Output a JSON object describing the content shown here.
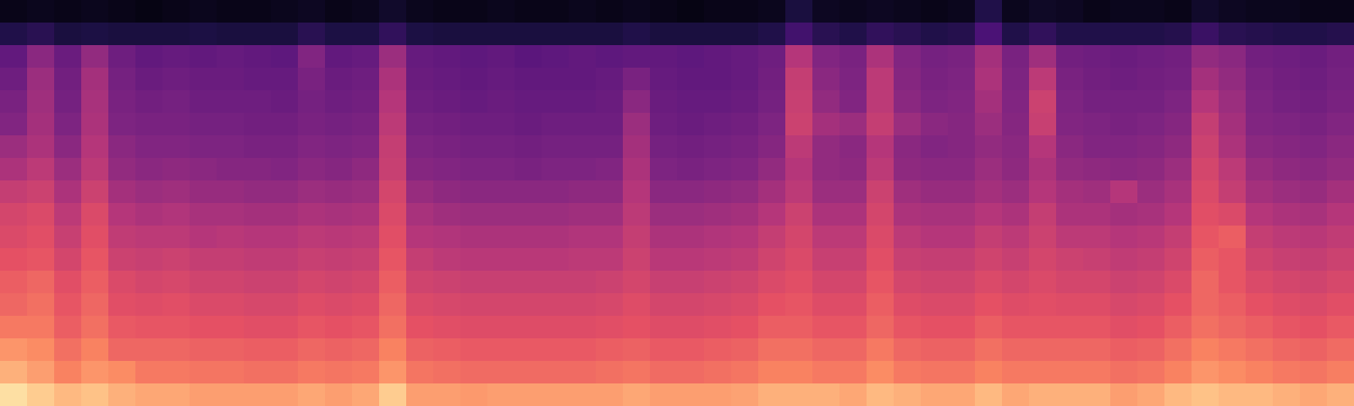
{
  "chart_data": {
    "type": "heatmap",
    "tick_labels": false,
    "zlim": [
      0,
      100
    ],
    "z": [
      [
        4,
        5,
        4,
        5,
        4,
        3,
        4,
        5,
        4,
        4,
        5,
        6,
        4,
        5,
        8,
        5,
        4,
        4,
        5,
        4,
        4,
        5,
        4,
        5,
        4,
        3,
        4,
        4,
        5,
        12,
        6,
        5,
        6,
        5,
        4,
        5,
        14,
        5,
        7,
        6,
        4,
        5,
        5,
        4,
        8,
        6,
        5,
        5,
        4,
        4
      ],
      [
        14,
        16,
        12,
        13,
        12,
        12,
        12,
        13,
        12,
        12,
        12,
        16,
        13,
        13,
        18,
        13,
        12,
        12,
        12,
        12,
        12,
        12,
        12,
        14,
        12,
        12,
        12,
        12,
        14,
        22,
        16,
        14,
        18,
        16,
        14,
        15,
        24,
        14,
        18,
        14,
        14,
        14,
        14,
        15,
        20,
        16,
        15,
        14,
        14,
        15
      ],
      [
        30,
        40,
        32,
        42,
        33,
        30,
        31,
        30,
        31,
        30,
        29,
        38,
        30,
        31,
        44,
        31,
        30,
        29,
        30,
        28,
        29,
        30,
        29,
        30,
        30,
        29,
        30,
        31,
        33,
        50,
        38,
        36,
        48,
        38,
        35,
        36,
        46,
        36,
        45,
        34,
        33,
        32,
        33,
        34,
        42,
        40,
        34,
        33,
        32,
        34
      ],
      [
        33,
        44,
        34,
        46,
        35,
        32,
        33,
        32,
        32,
        31,
        31,
        36,
        32,
        33,
        48,
        32,
        31,
        30,
        31,
        30,
        30,
        30,
        31,
        36,
        31,
        30,
        30,
        31,
        34,
        54,
        40,
        37,
        52,
        39,
        36,
        37,
        48,
        37,
        52,
        36,
        34,
        33,
        34,
        35,
        46,
        42,
        36,
        34,
        33,
        35
      ],
      [
        36,
        45,
        35,
        47,
        36,
        34,
        35,
        33,
        33,
        33,
        32,
        35,
        33,
        34,
        50,
        33,
        32,
        31,
        32,
        31,
        31,
        31,
        32,
        40,
        32,
        31,
        31,
        32,
        35,
        55,
        42,
        38,
        52,
        40,
        37,
        38,
        46,
        38,
        56,
        37,
        35,
        35,
        35,
        37,
        50,
        44,
        37,
        35,
        34,
        36
      ],
      [
        38,
        46,
        37,
        48,
        37,
        36,
        36,
        35,
        35,
        34,
        34,
        36,
        35,
        36,
        52,
        35,
        34,
        33,
        33,
        32,
        33,
        33,
        33,
        44,
        33,
        32,
        33,
        34,
        37,
        56,
        46,
        44,
        54,
        44,
        40,
        39,
        44,
        39,
        55,
        38,
        37,
        36,
        37,
        39,
        54,
        46,
        38,
        37,
        36,
        38
      ],
      [
        44,
        48,
        40,
        50,
        40,
        38,
        38,
        37,
        37,
        36,
        36,
        38,
        37,
        38,
        54,
        37,
        36,
        35,
        35,
        34,
        35,
        35,
        35,
        46,
        35,
        34,
        35,
        36,
        39,
        52,
        42,
        40,
        50,
        40,
        38,
        39,
        42,
        40,
        50,
        40,
        38,
        38,
        39,
        41,
        56,
        48,
        40,
        39,
        38,
        40
      ],
      [
        48,
        52,
        44,
        52,
        42,
        40,
        41,
        40,
        39,
        39,
        38,
        40,
        39,
        41,
        55,
        39,
        38,
        37,
        37,
        36,
        37,
        37,
        38,
        48,
        37,
        36,
        37,
        38,
        42,
        50,
        42,
        41,
        52,
        41,
        40,
        40,
        44,
        41,
        48,
        42,
        41,
        40,
        41,
        44,
        58,
        52,
        43,
        41,
        40,
        42
      ],
      [
        54,
        56,
        48,
        56,
        46,
        44,
        45,
        43,
        43,
        42,
        42,
        44,
        43,
        44,
        58,
        43,
        41,
        40,
        40,
        40,
        40,
        41,
        41,
        50,
        40,
        40,
        41,
        42,
        46,
        52,
        44,
        44,
        56,
        45,
        43,
        43,
        46,
        44,
        50,
        46,
        45,
        50,
        44,
        47,
        60,
        54,
        46,
        44,
        43,
        46
      ],
      [
        58,
        60,
        52,
        60,
        50,
        48,
        49,
        47,
        47,
        46,
        46,
        48,
        47,
        48,
        60,
        47,
        45,
        44,
        44,
        44,
        44,
        45,
        45,
        52,
        44,
        44,
        45,
        46,
        50,
        56,
        48,
        48,
        58,
        48,
        47,
        47,
        50,
        48,
        54,
        48,
        48,
        46,
        47,
        50,
        62,
        60,
        50,
        48,
        47,
        50
      ],
      [
        60,
        62,
        55,
        62,
        53,
        52,
        52,
        50,
        51,
        50,
        50,
        52,
        51,
        52,
        62,
        50,
        49,
        48,
        48,
        48,
        48,
        49,
        49,
        54,
        48,
        48,
        49,
        50,
        54,
        58,
        52,
        52,
        60,
        52,
        50,
        50,
        54,
        52,
        56,
        52,
        52,
        50,
        51,
        54,
        64,
        66,
        54,
        52,
        51,
        53
      ],
      [
        63,
        64,
        58,
        64,
        56,
        55,
        56,
        54,
        54,
        53,
        53,
        55,
        54,
        55,
        64,
        54,
        52,
        51,
        51,
        51,
        51,
        52,
        52,
        56,
        51,
        51,
        52,
        53,
        57,
        60,
        55,
        55,
        62,
        55,
        54,
        54,
        57,
        55,
        58,
        56,
        55,
        53,
        54,
        57,
        66,
        64,
        57,
        55,
        54,
        56
      ],
      [
        66,
        68,
        62,
        66,
        60,
        58,
        59,
        57,
        57,
        56,
        56,
        58,
        57,
        58,
        66,
        57,
        56,
        55,
        55,
        55,
        55,
        55,
        56,
        58,
        55,
        55,
        56,
        57,
        60,
        62,
        58,
        58,
        64,
        58,
        57,
        57,
        60,
        58,
        60,
        58,
        58,
        56,
        57,
        60,
        68,
        64,
        60,
        58,
        57,
        59
      ],
      [
        68,
        70,
        64,
        68,
        62,
        61,
        62,
        60,
        60,
        59,
        59,
        61,
        60,
        61,
        68,
        60,
        59,
        58,
        58,
        58,
        58,
        58,
        59,
        61,
        58,
        58,
        59,
        60,
        63,
        64,
        61,
        61,
        66,
        61,
        60,
        60,
        63,
        61,
        62,
        61,
        61,
        59,
        60,
        63,
        68,
        66,
        63,
        61,
        60,
        62
      ],
      [
        72,
        72,
        66,
        70,
        65,
        64,
        64,
        63,
        63,
        62,
        62,
        64,
        63,
        64,
        70,
        63,
        62,
        61,
        61,
        61,
        61,
        61,
        62,
        63,
        61,
        61,
        62,
        63,
        66,
        66,
        64,
        64,
        68,
        64,
        63,
        63,
        66,
        64,
        64,
        64,
        64,
        62,
        63,
        66,
        70,
        68,
        66,
        64,
        63,
        65
      ],
      [
        78,
        76,
        70,
        74,
        68,
        68,
        68,
        67,
        67,
        66,
        66,
        68,
        67,
        68,
        74,
        67,
        66,
        65,
        65,
        65,
        65,
        65,
        66,
        67,
        65,
        65,
        66,
        67,
        70,
        70,
        68,
        68,
        72,
        68,
        67,
        67,
        70,
        68,
        68,
        68,
        68,
        66,
        67,
        70,
        74,
        72,
        70,
        68,
        67,
        69
      ],
      [
        84,
        80,
        74,
        78,
        76,
        72,
        72,
        71,
        71,
        70,
        70,
        72,
        71,
        72,
        78,
        71,
        70,
        69,
        69,
        69,
        69,
        69,
        70,
        71,
        69,
        69,
        70,
        71,
        74,
        74,
        72,
        72,
        76,
        72,
        71,
        71,
        74,
        72,
        72,
        72,
        72,
        70,
        71,
        74,
        78,
        76,
        74,
        72,
        71,
        73
      ],
      [
        94,
        90,
        86,
        88,
        84,
        82,
        82,
        80,
        80,
        80,
        80,
        82,
        80,
        82,
        90,
        80,
        80,
        79,
        80,
        80,
        80,
        80,
        80,
        82,
        80,
        80,
        80,
        81,
        84,
        84,
        84,
        82,
        86,
        84,
        82,
        82,
        86,
        82,
        84,
        84,
        84,
        80,
        82,
        86,
        88,
        86,
        86,
        84,
        82,
        84
      ]
    ]
  }
}
